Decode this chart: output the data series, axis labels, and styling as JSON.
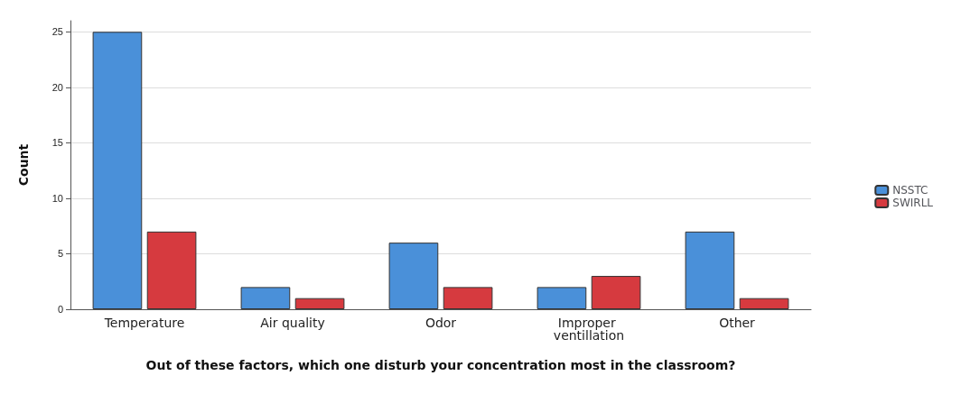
{
  "chart_data": {
    "type": "bar",
    "xlabel": "Out of these factors, which one disturb your concentration most in the classroom?",
    "ylabel": "Count",
    "categories": [
      "Temperature",
      "Air quality",
      "Odor",
      "Improper ventillation",
      "Other"
    ],
    "series": [
      {
        "name": "NSSTC",
        "color": "#4a90d9",
        "values": [
          25,
          2,
          6,
          2,
          7
        ]
      },
      {
        "name": "SWIRLL",
        "color": "#d63a3f",
        "values": [
          7,
          1,
          2,
          3,
          1
        ]
      }
    ],
    "ylim": [
      0,
      26
    ],
    "yticks": [
      0,
      5,
      10,
      15,
      20,
      25
    ],
    "grid": "y",
    "legend": "right"
  }
}
